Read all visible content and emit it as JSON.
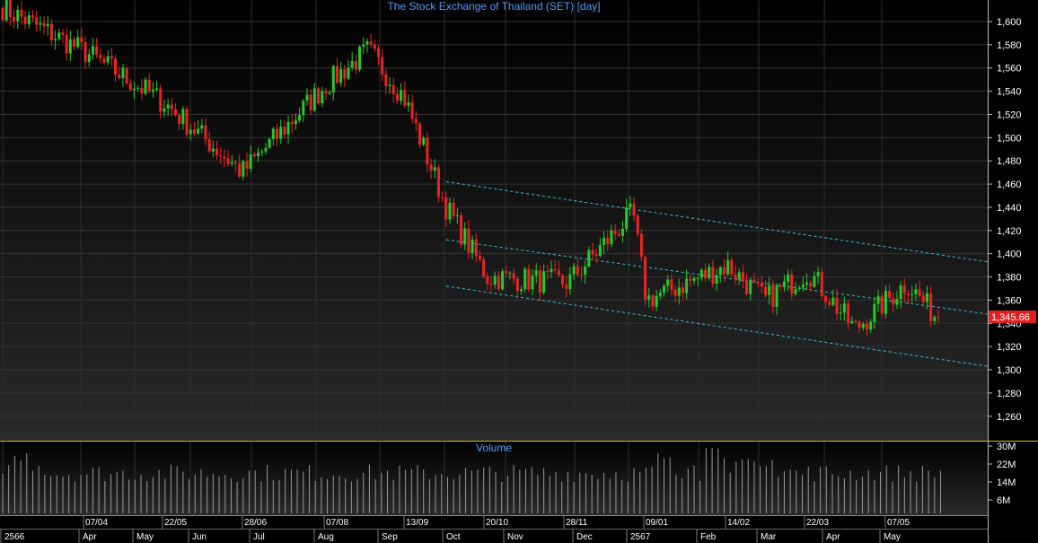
{
  "chart_data": [
    {
      "type": "candlestick",
      "title": "The Stock Exchange of Thailand (SET) [day]",
      "ylim": [
        1240,
        1620
      ],
      "y_ticks": [
        "1,600",
        "1,580",
        "1,560",
        "1,540",
        "1,520",
        "1,500",
        "1,480",
        "1,460",
        "1,440",
        "1,420",
        "1,400",
        "1,380",
        "1,360",
        "1,340",
        "1,320",
        "1,300",
        "1,280",
        "1,260"
      ],
      "last_price_label": "1,345.66",
      "last_price": 1345.66,
      "colors": {
        "up": "#22cc22",
        "down": "#ee2222",
        "grid": "#3a3a3a",
        "trendline": "#33cccc",
        "last_price_box": "#e02020"
      },
      "key_closes": [
        {
          "date": "Jan 2023",
          "close": 1612
        },
        {
          "date": "07/04",
          "close": 1575
        },
        {
          "date": "22/05",
          "close": 1530
        },
        {
          "date": "28/06",
          "close": 1470
        },
        {
          "date": "07/08",
          "close": 1545
        },
        {
          "date": "Aug high",
          "close": 1575
        },
        {
          "date": "13/09",
          "close": 1535
        },
        {
          "date": "Oct",
          "close": 1440
        },
        {
          "date": "20/10",
          "close": 1380
        },
        {
          "date": "28/11",
          "close": 1375
        },
        {
          "date": "Dec high",
          "close": 1435
        },
        {
          "date": "09/01",
          "close": 1360
        },
        {
          "date": "14/02",
          "close": 1390
        },
        {
          "date": "Mar",
          "close": 1360
        },
        {
          "date": "22/03",
          "close": 1385
        },
        {
          "date": "Apr low",
          "close": 1335
        },
        {
          "date": "07/05",
          "close": 1375
        },
        {
          "date": "last",
          "close": 1345.66
        }
      ],
      "trend_lines": [
        {
          "from": [
            "Oct",
            1462
          ],
          "to": [
            "end",
            1393
          ]
        },
        {
          "from": [
            "Oct",
            1412
          ],
          "to": [
            "end",
            1348
          ]
        },
        {
          "from": [
            "Oct",
            1372
          ],
          "to": [
            "end",
            1303
          ]
        }
      ]
    },
    {
      "type": "bar",
      "title": "Volume",
      "y_ticks": [
        "30M",
        "22M",
        "14M",
        "6M"
      ],
      "ylim": [
        0,
        32
      ],
      "unit": "M",
      "color": "#9a9a9a"
    }
  ],
  "x_axis": {
    "top_labels": [
      "07/04",
      "22/05",
      "28/06",
      "07/08",
      "13/09",
      "20/10",
      "28/11",
      "09/01",
      "14/02",
      "22/03",
      "07/05"
    ],
    "bottom_labels": [
      "2566",
      "Apr",
      "May",
      "Jun",
      "Jul",
      "Aug",
      "Sep",
      "Oct",
      "Nov",
      "Dec",
      "2567",
      "Feb",
      "Mar",
      "Apr",
      "May"
    ]
  }
}
